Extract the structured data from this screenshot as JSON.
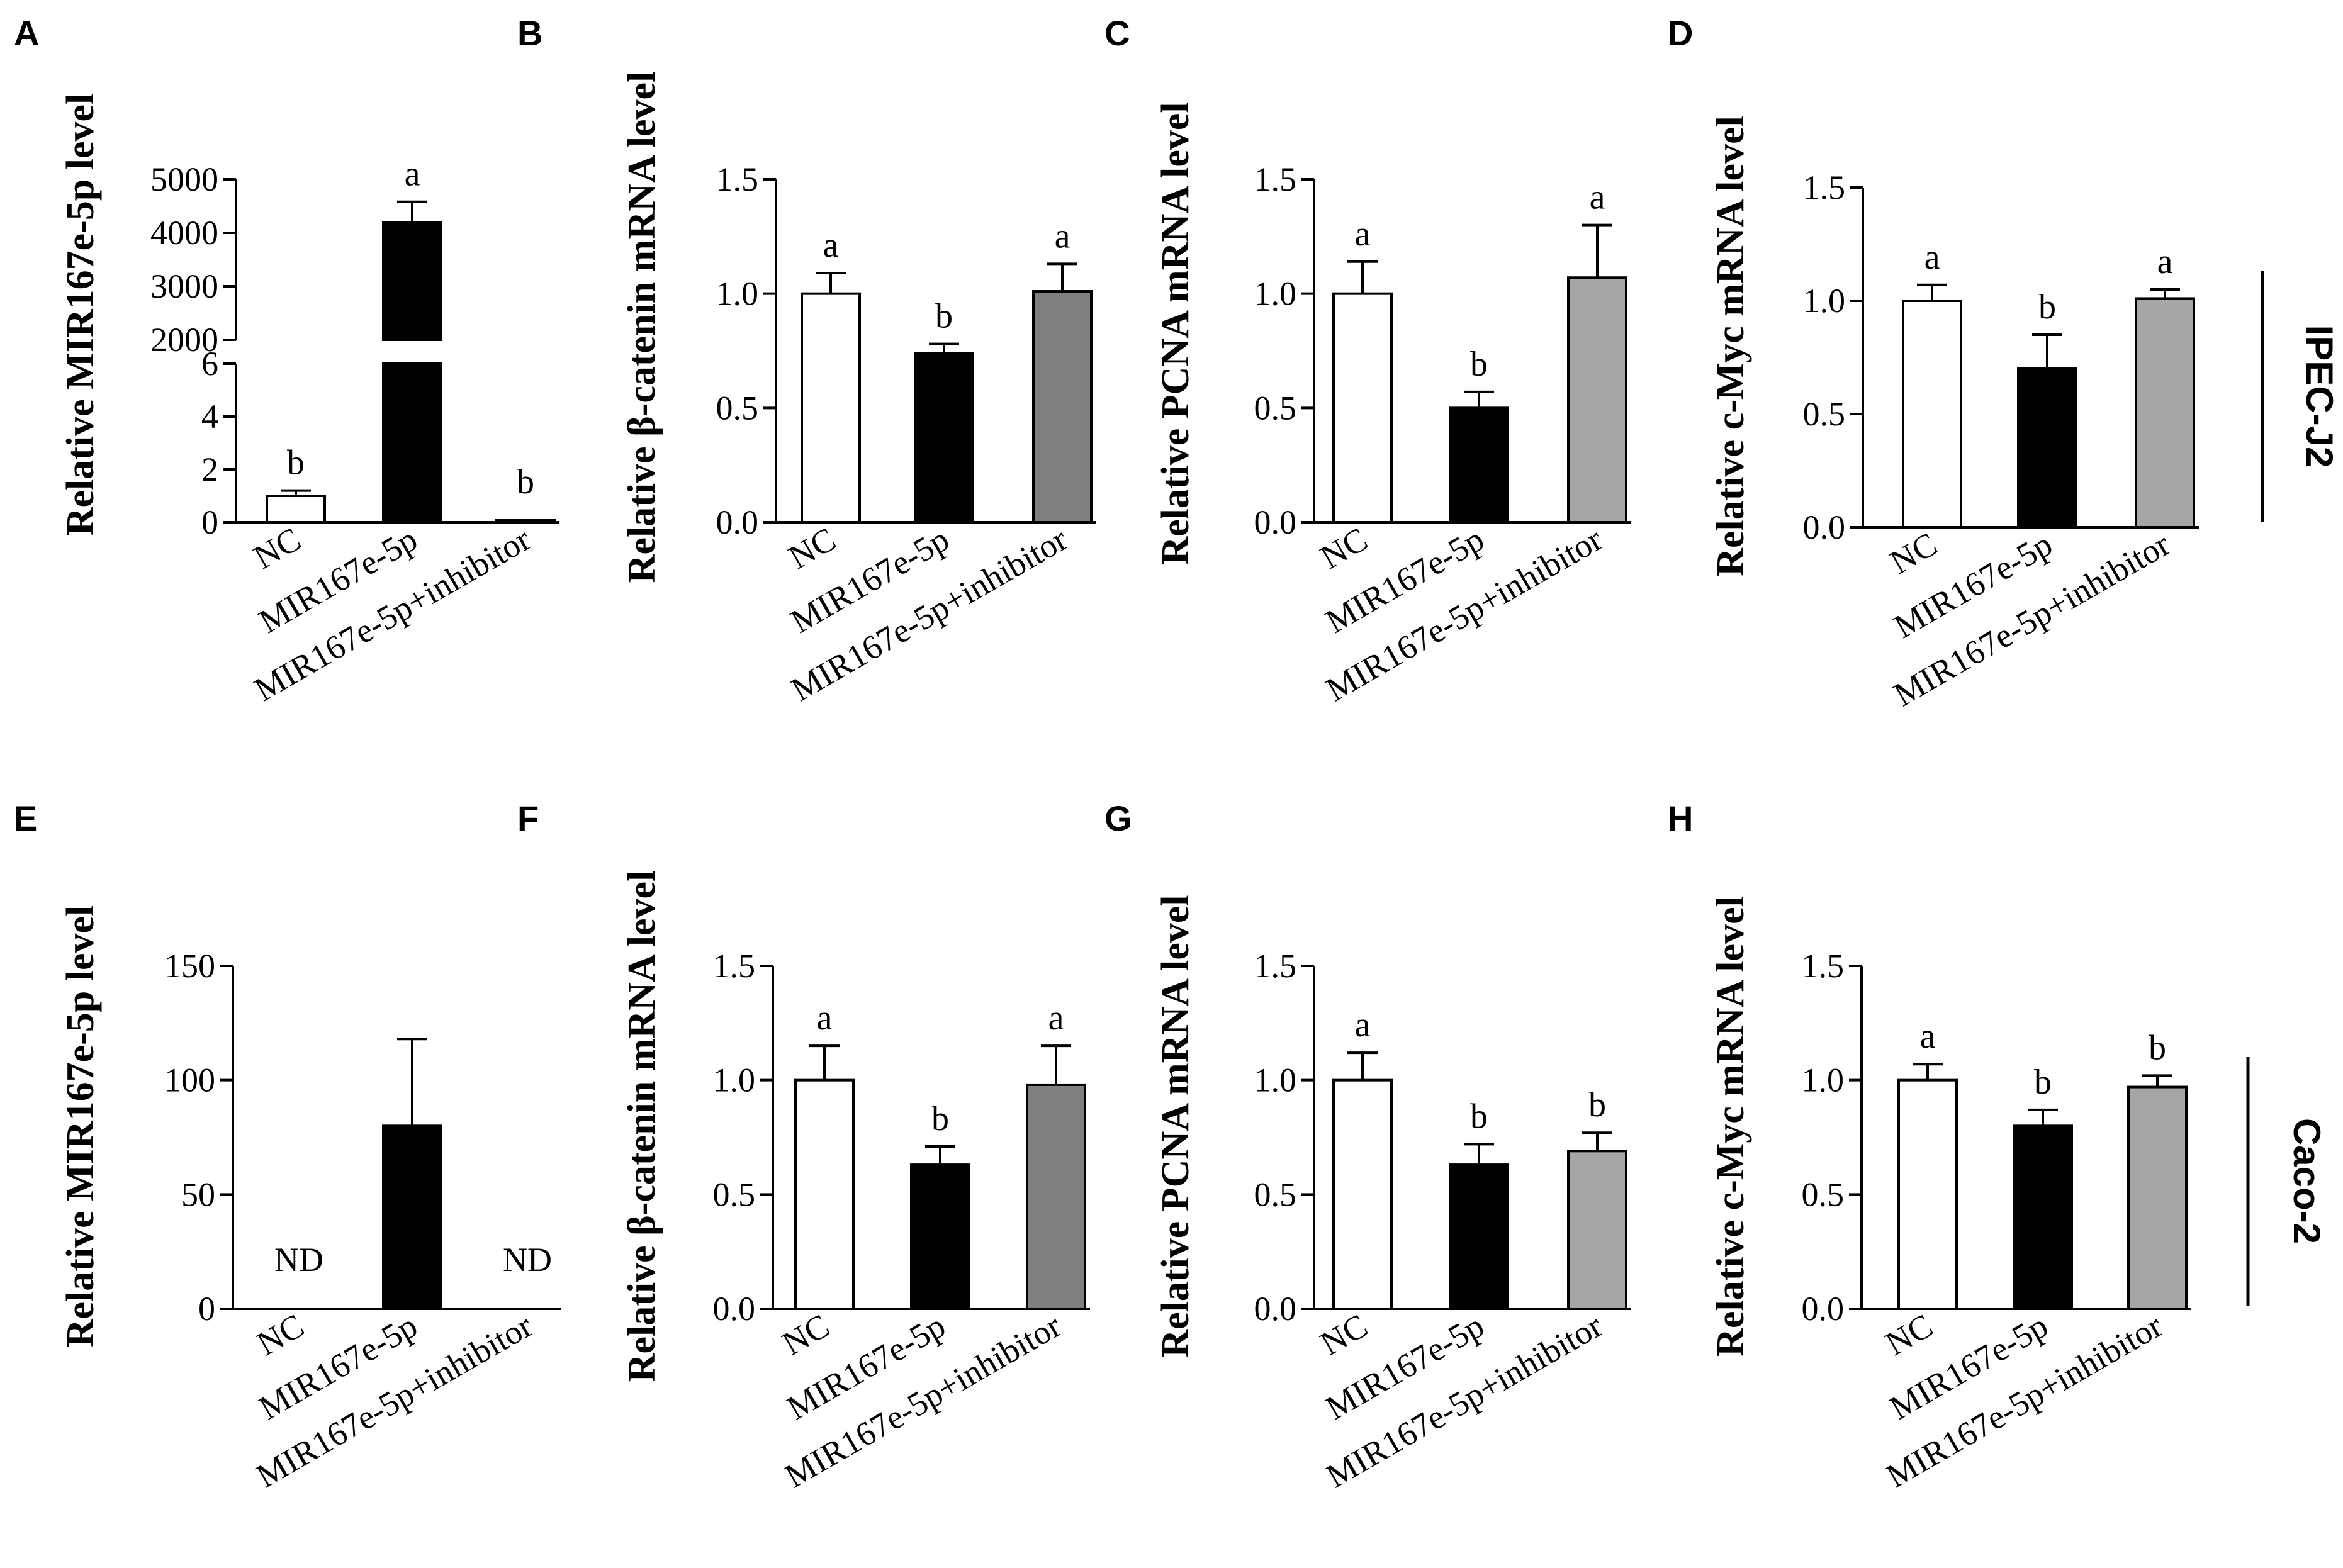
{
  "figure": {
    "row_labels": [
      "IPEC-J2",
      "Caco-2"
    ]
  },
  "chart_data": [
    {
      "panel": "A",
      "type": "bar",
      "axis_break": true,
      "ylabel": "Relative MIR167e-5p level",
      "categories": [
        "NC",
        "MIR167e-5p",
        "MIR167e-5p+inhibitor"
      ],
      "values": [
        1.0,
        4200,
        0.05
      ],
      "errors": [
        0.2,
        380,
        0.0
      ],
      "letters": [
        "b",
        "a",
        "b"
      ],
      "lower_ticks": [
        "0",
        "2",
        "4",
        "6"
      ],
      "upper_ticks": [
        "2000",
        "3000",
        "4000",
        "5000"
      ],
      "lower_ylim": [
        0,
        6
      ],
      "upper_ylim": [
        2000,
        5000
      ],
      "colors": [
        "#ffffff",
        "#000000",
        "#ffffff"
      ]
    },
    {
      "panel": "B",
      "type": "bar",
      "ylabel": "Relative β-catenin mRNA level",
      "categories": [
        "NC",
        "MIR167e-5p",
        "MIR167e-5p+inhibitor"
      ],
      "values": [
        1.0,
        0.74,
        1.01
      ],
      "errors": [
        0.09,
        0.04,
        0.12
      ],
      "letters": [
        "a",
        "b",
        "a"
      ],
      "ylim": [
        0,
        1.5
      ],
      "ticks": [
        "0.0",
        "0.5",
        "1.0",
        "1.5"
      ],
      "colors": [
        "#ffffff",
        "#000000",
        "#7f7f7f"
      ]
    },
    {
      "panel": "C",
      "type": "bar",
      "ylabel": "Relative PCNA mRNA level",
      "categories": [
        "NC",
        "MIR167e-5p",
        "MIR167e-5p+inhibitor"
      ],
      "values": [
        1.0,
        0.5,
        1.07
      ],
      "errors": [
        0.14,
        0.07,
        0.23
      ],
      "letters": [
        "a",
        "b",
        "a"
      ],
      "ylim": [
        0,
        1.5
      ],
      "ticks": [
        "0.0",
        "0.5",
        "1.0",
        "1.5"
      ],
      "colors": [
        "#ffffff",
        "#000000",
        "#a6a6a6"
      ]
    },
    {
      "panel": "D",
      "type": "bar",
      "ylabel": "Relative c-Myc mRNA level",
      "categories": [
        "NC",
        "MIR167e-5p",
        "MIR167e-5p+inhibitor"
      ],
      "values": [
        1.0,
        0.7,
        1.01
      ],
      "errors": [
        0.07,
        0.15,
        0.04
      ],
      "letters": [
        "a",
        "b",
        "a"
      ],
      "ylim": [
        0,
        1.5
      ],
      "ticks": [
        "0.0",
        "0.5",
        "1.0",
        "1.5"
      ],
      "colors": [
        "#ffffff",
        "#000000",
        "#a6a6a6"
      ]
    },
    {
      "panel": "E",
      "type": "bar",
      "ylabel": "Relative MIR167e-5p level",
      "categories": [
        "NC",
        "MIR167e-5p",
        "MIR167e-5p+inhibitor"
      ],
      "values": [
        0,
        80,
        0
      ],
      "errors": [
        0,
        38,
        0
      ],
      "letters": [
        "ND",
        "",
        "ND"
      ],
      "ylim": [
        0,
        150
      ],
      "ticks": [
        "0",
        "50",
        "100",
        "150"
      ],
      "colors": [
        "#ffffff",
        "#000000",
        "#ffffff"
      ]
    },
    {
      "panel": "F",
      "type": "bar",
      "ylabel": "Relative β-catenin mRNA level",
      "categories": [
        "NC",
        "MIR167e-5p",
        "MIR167e-5p+inhibitor"
      ],
      "values": [
        1.0,
        0.63,
        0.98
      ],
      "errors": [
        0.15,
        0.08,
        0.17
      ],
      "letters": [
        "a",
        "b",
        "a"
      ],
      "ylim": [
        0,
        1.5
      ],
      "ticks": [
        "0.0",
        "0.5",
        "1.0",
        "1.5"
      ],
      "colors": [
        "#ffffff",
        "#000000",
        "#7f7f7f"
      ]
    },
    {
      "panel": "G",
      "type": "bar",
      "ylabel": "Relative PCNA mRNA level",
      "categories": [
        "NC",
        "MIR167e-5p",
        "MIR167e-5p+inhibitor"
      ],
      "values": [
        1.0,
        0.63,
        0.69
      ],
      "errors": [
        0.12,
        0.09,
        0.08
      ],
      "letters": [
        "a",
        "b",
        "b"
      ],
      "ylim": [
        0,
        1.5
      ],
      "ticks": [
        "0.0",
        "0.5",
        "1.0",
        "1.5"
      ],
      "colors": [
        "#ffffff",
        "#000000",
        "#a6a6a6"
      ]
    },
    {
      "panel": "H",
      "type": "bar",
      "ylabel": "Relative c-Myc mRNA level",
      "categories": [
        "NC",
        "MIR167e-5p",
        "MIR167e-5p+inhibitor"
      ],
      "values": [
        1.0,
        0.8,
        0.97
      ],
      "errors": [
        0.07,
        0.07,
        0.05
      ],
      "letters": [
        "a",
        "b",
        "b"
      ],
      "ylim": [
        0,
        1.5
      ],
      "ticks": [
        "0.0",
        "0.5",
        "1.0",
        "1.5"
      ],
      "colors": [
        "#ffffff",
        "#000000",
        "#a6a6a6"
      ]
    }
  ]
}
